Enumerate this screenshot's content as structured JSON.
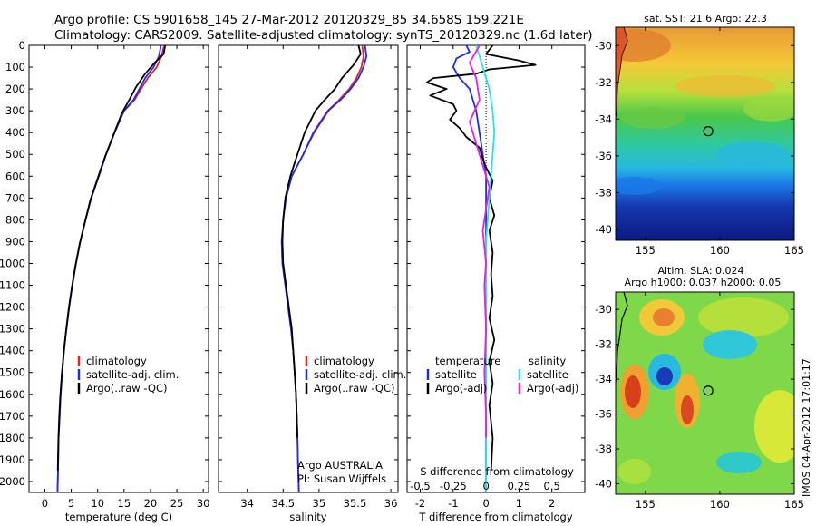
{
  "title_line1": "Argo profile: CS 5901658_145 27-Mar-2012 20120329_85 34.658S 159.221E",
  "title_line2": "Climatology: CARS2009. Satellite-adjusted climatology: synTS_20120329.nc (1.6d later)",
  "colors": {
    "climatology": "#e8231c",
    "satellite": "#1a2cf0",
    "argo": "#000000",
    "sal_satellite": "#22e6e8",
    "sal_argo": "#e81ee0"
  },
  "chart_data": [
    {
      "type": "line",
      "panel": "temperature",
      "xlabel": "temperature (deg C)",
      "ylabel": "",
      "xlim": [
        -3,
        31
      ],
      "ylim": [
        2050,
        0
      ],
      "xticks": [
        "0",
        "5",
        "10",
        "15",
        "20",
        "25",
        "30"
      ],
      "xtick_values": [
        0,
        5,
        10,
        15,
        20,
        25,
        30
      ],
      "yticks": [
        "0",
        "100",
        "200",
        "300",
        "400",
        "500",
        "600",
        "700",
        "800",
        "900",
        "1000",
        "1100",
        "1200",
        "1300",
        "1400",
        "1500",
        "1600",
        "1700",
        "1800",
        "1900",
        "2000"
      ],
      "ytick_values": [
        0,
        100,
        200,
        300,
        400,
        500,
        600,
        700,
        800,
        900,
        1000,
        1100,
        1200,
        1300,
        1400,
        1500,
        1600,
        1700,
        1800,
        1900,
        2000
      ],
      "legend": [
        "climatology",
        "satellite-adj. clim.",
        "Argo(..raw -QC)"
      ],
      "series": [
        {
          "name": "climatology",
          "color": "climatology",
          "x": [
            22.6,
            22.1,
            21.2,
            19.5,
            18.2,
            17.0,
            15.0,
            13.2,
            11.6,
            10.2,
            8.8,
            7.7,
            6.7,
            5.9,
            5.2,
            4.6,
            4.1,
            3.6,
            3.3,
            3.0,
            2.8,
            2.6,
            2.5,
            2.4
          ],
          "y": [
            0,
            50,
            100,
            150,
            200,
            250,
            300,
            400,
            500,
            600,
            700,
            800,
            900,
            1000,
            1100,
            1200,
            1300,
            1400,
            1500,
            1600,
            1700,
            1800,
            1950,
            2050
          ]
        },
        {
          "name": "satellite-adj. clim.",
          "color": "satellite",
          "x": [
            22.0,
            21.6,
            20.6,
            19.0,
            17.9,
            16.8,
            15.0,
            13.2,
            11.6,
            10.2,
            8.8,
            7.7,
            6.7,
            5.9,
            5.2,
            4.6,
            4.1,
            3.6,
            3.3,
            3.0,
            2.8,
            2.6,
            2.5,
            2.4
          ],
          "y": [
            0,
            50,
            100,
            150,
            200,
            250,
            300,
            400,
            500,
            600,
            700,
            800,
            900,
            1000,
            1100,
            1200,
            1300,
            1400,
            1500,
            1600,
            1700,
            1800,
            1950,
            2050
          ]
        },
        {
          "name": "Argo(..raw -QC)",
          "color": "argo",
          "x": [
            22.8,
            22.5,
            20.8,
            19.0,
            17.3,
            16.0,
            14.6,
            13.0,
            11.4,
            10.0,
            8.6,
            7.6,
            6.6,
            5.8,
            5.1,
            4.5,
            4.0,
            3.6,
            3.2,
            2.9,
            2.7,
            2.55,
            2.45
          ],
          "y": [
            0,
            40,
            80,
            130,
            190,
            250,
            310,
            410,
            510,
            610,
            710,
            810,
            910,
            1010,
            1110,
            1210,
            1310,
            1410,
            1510,
            1610,
            1710,
            1820,
            1950
          ]
        }
      ]
    },
    {
      "type": "line",
      "panel": "salinity",
      "xlabel": "salinity",
      "ylabel": "",
      "xlim": [
        33.6,
        36.1
      ],
      "ylim": [
        2050,
        0
      ],
      "xticks": [
        "34",
        "34.5",
        "35",
        "35.5",
        "36"
      ],
      "xtick_values": [
        34,
        34.5,
        35,
        35.5,
        36
      ],
      "legend": [
        "climatology",
        "satellite-adj. clim.",
        "Argo(..raw -QC)"
      ],
      "annotation": [
        "Argo AUSTRALIA",
        "PI: Susan Wijffels"
      ],
      "series": [
        {
          "name": "climatology",
          "color": "climatology",
          "x": [
            35.6,
            35.62,
            35.59,
            35.52,
            35.42,
            35.28,
            35.12,
            34.92,
            34.78,
            34.62,
            34.54,
            34.5,
            34.48,
            34.49,
            34.53,
            34.57,
            34.61,
            34.64,
            34.66,
            34.68,
            34.69,
            34.7,
            34.71,
            34.72
          ],
          "y": [
            0,
            50,
            100,
            150,
            200,
            250,
            300,
            400,
            500,
            600,
            700,
            800,
            900,
            1000,
            1100,
            1200,
            1300,
            1400,
            1500,
            1600,
            1700,
            1800,
            1950,
            2050
          ]
        },
        {
          "name": "satellite-adj. clim.",
          "color": "satellite",
          "x": [
            35.64,
            35.66,
            35.62,
            35.55,
            35.44,
            35.3,
            35.13,
            34.93,
            34.78,
            34.62,
            34.54,
            34.5,
            34.48,
            34.49,
            34.53,
            34.57,
            34.61,
            34.64,
            34.66,
            34.68,
            34.69,
            34.7,
            34.71,
            34.72
          ],
          "y": [
            0,
            50,
            100,
            150,
            200,
            250,
            300,
            400,
            500,
            600,
            700,
            800,
            900,
            1000,
            1100,
            1200,
            1300,
            1400,
            1500,
            1600,
            1700,
            1800,
            1950,
            2050
          ]
        },
        {
          "name": "Argo(..raw -QC)",
          "color": "argo",
          "x": [
            35.55,
            35.58,
            35.48,
            35.32,
            35.22,
            35.08,
            34.95,
            34.8,
            34.7,
            34.6,
            34.53,
            34.5,
            34.49,
            34.5,
            34.54,
            34.58,
            34.62,
            34.64,
            34.66,
            34.68,
            34.69,
            34.7
          ],
          "y": [
            0,
            40,
            90,
            150,
            200,
            250,
            300,
            400,
            500,
            600,
            700,
            800,
            900,
            1000,
            1100,
            1200,
            1300,
            1400,
            1500,
            1600,
            1700,
            1800
          ]
        }
      ]
    },
    {
      "type": "line",
      "panel": "difference",
      "xlabel": "T difference from climatology",
      "x2label": "S difference from climatology",
      "xlim": [
        -2.4,
        3.0
      ],
      "ylim": [
        2050,
        0
      ],
      "xticks": [
        "-2",
        "-1",
        "0",
        "1",
        "2"
      ],
      "xtick_values": [
        -2,
        -1,
        0,
        1,
        2
      ],
      "x2ticks": [
        "-0.5",
        "-0.25",
        "0",
        "0.25",
        "0.5"
      ],
      "x2tick_values": [
        -2,
        -1,
        0,
        1,
        2
      ],
      "legend_headers": [
        "temperature",
        "salinity"
      ],
      "legend": [
        {
          "label": "satellite",
          "color": "satellite"
        },
        {
          "label": "Argo(-adj)",
          "color": "argo"
        },
        {
          "label": "satellite",
          "color": "sal_satellite"
        },
        {
          "label": "Argo(-adj)",
          "color": "sal_argo"
        }
      ],
      "series": [
        {
          "name": "T satellite",
          "color": "satellite",
          "x": [
            -0.6,
            -0.5,
            -0.9,
            -1.0,
            -0.8,
            -0.5,
            -0.3,
            -0.1,
            0.0,
            0.0,
            0.0,
            0.0,
            0.0,
            0.0,
            0.0,
            0.0,
            0.0,
            0.0,
            0.0
          ],
          "y": [
            0,
            30,
            60,
            100,
            150,
            200,
            300,
            500,
            600,
            700,
            800,
            1000,
            1200,
            1400,
            1500,
            1600,
            1800,
            1950,
            2050
          ]
        },
        {
          "name": "T Argo(-adj)",
          "color": "argo",
          "x": [
            0.2,
            0.0,
            1.0,
            1.5,
            0.1,
            -0.3,
            -1.6,
            -1.8,
            -1.2,
            -1.7,
            -1.0,
            -0.9,
            -1.1,
            -0.8,
            -0.6,
            -0.2,
            -0.1,
            0.0,
            0.2,
            0.1,
            0.25,
            0.1,
            0.2,
            0.15,
            0.2,
            0.1,
            0.25,
            0.1,
            0.2,
            0.1,
            0.2,
            0.15
          ],
          "y": [
            0,
            40,
            70,
            90,
            110,
            130,
            150,
            170,
            200,
            230,
            270,
            300,
            340,
            380,
            420,
            470,
            520,
            560,
            620,
            700,
            780,
            850,
            950,
            1050,
            1150,
            1250,
            1350,
            1450,
            1550,
            1650,
            1800,
            1950
          ]
        },
        {
          "name": "S satellite",
          "color": "sal_satellite",
          "x": [
            -0.3,
            -0.2,
            -0.1,
            0.1,
            0.2,
            0.25,
            0.2,
            0.15,
            0.1,
            0.05,
            0.0,
            0.0,
            0.0,
            0.0,
            0.0,
            0.0,
            0.0,
            0.0
          ],
          "y": [
            0,
            50,
            100,
            200,
            300,
            400,
            500,
            600,
            700,
            800,
            900,
            1100,
            1300,
            1500,
            1700,
            1800,
            1950,
            2050
          ]
        },
        {
          "name": "S Argo(-adj)",
          "color": "sal_argo",
          "x": [
            -0.2,
            -0.5,
            -0.3,
            -0.2,
            -0.5,
            -0.3,
            -0.1,
            0.1,
            0.0,
            -0.1,
            0.0,
            -0.05,
            0.0,
            -0.05,
            0.0,
            0.0
          ],
          "y": [
            0,
            80,
            150,
            250,
            350,
            450,
            550,
            650,
            750,
            850,
            1000,
            1100,
            1300,
            1500,
            1700,
            1800
          ]
        }
      ]
    },
    {
      "type": "heatmap",
      "panel": "sst_map",
      "title": "sat. SST: 21.6 Argo: 22.3",
      "xlim": [
        153,
        165
      ],
      "ylim": [
        -40.6,
        -29.0
      ],
      "xticks": [
        "155",
        "160",
        "165"
      ],
      "xtick_values": [
        155,
        160,
        165
      ],
      "yticks": [
        "-30",
        "-32",
        "-34",
        "-36",
        "-38",
        "-40"
      ],
      "ytick_values": [
        -30,
        -32,
        -34,
        -36,
        -38,
        -40
      ],
      "marker": {
        "lon": 159.221,
        "lat": -34.658
      }
    },
    {
      "type": "heatmap",
      "panel": "sla_map",
      "title_line1": "Altim. SLA: 0.024",
      "title_line2": "Argo h1000: 0.037 h2000: 0.05",
      "xlim": [
        153,
        165
      ],
      "ylim": [
        -40.6,
        -29.0
      ],
      "xticks": [
        "155",
        "160",
        "165"
      ],
      "xtick_values": [
        155,
        160,
        165
      ],
      "yticks": [
        "-30",
        "-32",
        "-34",
        "-36",
        "-38",
        "-40"
      ],
      "ytick_values": [
        -30,
        -32,
        -34,
        -36,
        -38,
        -40
      ],
      "marker": {
        "lon": 159.221,
        "lat": -34.658
      }
    }
  ],
  "stamp": "IMOS 04-Apr-2012 17:01:17"
}
